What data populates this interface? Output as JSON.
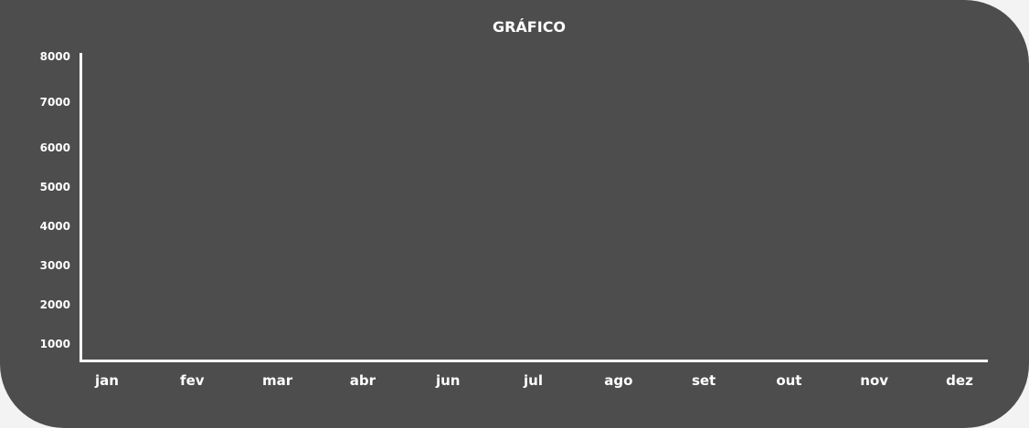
{
  "title": "GRÁFICO",
  "y_labels": [
    "8000",
    "7000",
    "6000",
    "5000",
    "4000",
    "3000",
    "2000",
    "1000"
  ],
  "x_labels": [
    "jan",
    "fev",
    "mar",
    "abr",
    "jun",
    "jul",
    "ago",
    "set",
    "out",
    "nov",
    "dez"
  ]
}
